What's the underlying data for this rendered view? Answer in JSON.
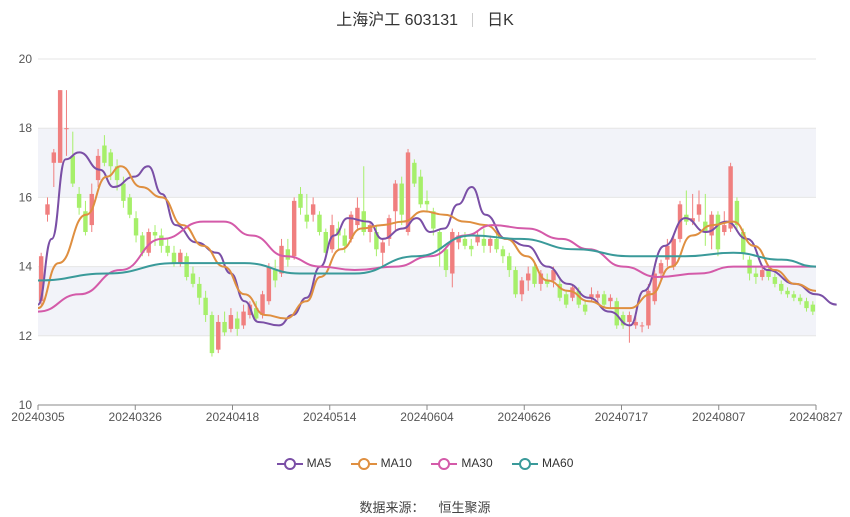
{
  "header": {
    "title": "上海沪工 603131",
    "period": "日K"
  },
  "footer": {
    "source_label": "数据来源：",
    "source_name": "恒生聚源"
  },
  "colors": {
    "up": "#f07f7f",
    "down": "#a6ef6a",
    "ma5": "#7a4fa6",
    "ma10": "#df8f40",
    "ma30": "#d45aa9",
    "ma60": "#3a9a9a",
    "band": "#f2f3f9",
    "grid": "#e6e6e6"
  },
  "chart_data": {
    "type": "candlestick",
    "x_ticks": [
      "20240305",
      "20240326",
      "20240418",
      "20240514",
      "20240604",
      "20240626",
      "20240717",
      "20240807",
      "20240827"
    ],
    "ylim": [
      10,
      20
    ],
    "y_ticks": [
      10,
      12,
      14,
      16,
      18,
      20
    ],
    "grid": true,
    "legend": "bottom",
    "candles": [
      {
        "o": 13.0,
        "c": 14.3,
        "h": 14.4,
        "l": 12.9
      },
      {
        "o": 15.5,
        "c": 15.8,
        "h": 16.0,
        "l": 15.3
      },
      {
        "o": 17.0,
        "c": 17.3,
        "h": 17.4,
        "l": 16.3
      },
      {
        "o": 17.0,
        "c": 19.1,
        "h": 19.1,
        "l": 17.0
      },
      {
        "o": 18.0,
        "c": 18.0,
        "h": 19.1,
        "l": 17.2
      },
      {
        "o": 17.2,
        "c": 16.4,
        "h": 17.9,
        "l": 16.3
      },
      {
        "o": 16.1,
        "c": 15.7,
        "h": 16.3,
        "l": 15.5
      },
      {
        "o": 15.6,
        "c": 15.0,
        "h": 15.9,
        "l": 14.9
      },
      {
        "o": 15.2,
        "c": 16.1,
        "h": 16.4,
        "l": 15.0
      },
      {
        "o": 16.5,
        "c": 17.2,
        "h": 17.4,
        "l": 16.3
      },
      {
        "o": 17.5,
        "c": 17.0,
        "h": 17.8,
        "l": 16.9
      },
      {
        "o": 17.3,
        "c": 16.9,
        "h": 17.4,
        "l": 16.5
      },
      {
        "o": 16.9,
        "c": 16.5,
        "h": 17.1,
        "l": 16.2
      },
      {
        "o": 16.4,
        "c": 15.9,
        "h": 16.6,
        "l": 15.7
      },
      {
        "o": 16.0,
        "c": 15.5,
        "h": 16.1,
        "l": 15.4
      },
      {
        "o": 15.4,
        "c": 14.9,
        "h": 15.6,
        "l": 14.7
      },
      {
        "o": 14.9,
        "c": 14.4,
        "h": 15.0,
        "l": 14.3
      },
      {
        "o": 14.4,
        "c": 15.0,
        "h": 15.1,
        "l": 14.3
      },
      {
        "o": 15.0,
        "c": 14.9,
        "h": 15.2,
        "l": 14.6
      },
      {
        "o": 14.9,
        "c": 14.6,
        "h": 15.1,
        "l": 14.4
      },
      {
        "o": 14.6,
        "c": 14.4,
        "h": 14.8,
        "l": 14.3
      },
      {
        "o": 14.4,
        "c": 14.1,
        "h": 14.6,
        "l": 14.0
      },
      {
        "o": 14.1,
        "c": 14.4,
        "h": 14.5,
        "l": 14.0
      },
      {
        "o": 14.3,
        "c": 13.7,
        "h": 14.4,
        "l": 13.6
      },
      {
        "o": 13.8,
        "c": 13.5,
        "h": 14.0,
        "l": 13.4
      },
      {
        "o": 13.5,
        "c": 13.1,
        "h": 13.7,
        "l": 12.9
      },
      {
        "o": 13.1,
        "c": 12.6,
        "h": 13.3,
        "l": 12.4
      },
      {
        "o": 12.6,
        "c": 11.5,
        "h": 12.7,
        "l": 11.4
      },
      {
        "o": 11.6,
        "c": 12.4,
        "h": 12.6,
        "l": 11.5
      },
      {
        "o": 12.4,
        "c": 12.1,
        "h": 12.7,
        "l": 12.0
      },
      {
        "o": 12.2,
        "c": 12.6,
        "h": 12.8,
        "l": 12.1
      },
      {
        "o": 12.5,
        "c": 12.2,
        "h": 12.7,
        "l": 12.0
      },
      {
        "o": 12.3,
        "c": 12.7,
        "h": 12.9,
        "l": 12.2
      },
      {
        "o": 12.6,
        "c": 12.9,
        "h": 13.0,
        "l": 12.5
      },
      {
        "o": 12.8,
        "c": 12.5,
        "h": 13.0,
        "l": 12.4
      },
      {
        "o": 12.6,
        "c": 13.2,
        "h": 13.3,
        "l": 12.5
      },
      {
        "o": 13.0,
        "c": 14.0,
        "h": 14.1,
        "l": 12.9
      },
      {
        "o": 13.9,
        "c": 13.6,
        "h": 14.2,
        "l": 13.4
      },
      {
        "o": 13.8,
        "c": 14.6,
        "h": 14.8,
        "l": 13.7
      },
      {
        "o": 14.5,
        "c": 14.2,
        "h": 14.8,
        "l": 14.0
      },
      {
        "o": 14.3,
        "c": 15.9,
        "h": 16.0,
        "l": 14.2
      },
      {
        "o": 16.1,
        "c": 15.7,
        "h": 16.3,
        "l": 15.5
      },
      {
        "o": 15.5,
        "c": 15.3,
        "h": 16.1,
        "l": 15.1
      },
      {
        "o": 15.5,
        "c": 15.8,
        "h": 16.0,
        "l": 15.3
      },
      {
        "o": 15.5,
        "c": 15.0,
        "h": 15.6,
        "l": 14.9
      },
      {
        "o": 15.0,
        "c": 14.4,
        "h": 15.1,
        "l": 14.3
      },
      {
        "o": 14.5,
        "c": 15.2,
        "h": 15.5,
        "l": 14.4
      },
      {
        "o": 15.1,
        "c": 14.9,
        "h": 15.3,
        "l": 14.5
      },
      {
        "o": 14.9,
        "c": 14.6,
        "h": 15.1,
        "l": 14.4
      },
      {
        "o": 14.8,
        "c": 15.5,
        "h": 15.6,
        "l": 14.7
      },
      {
        "o": 15.2,
        "c": 15.7,
        "h": 16.0,
        "l": 15.1
      },
      {
        "o": 15.6,
        "c": 15.0,
        "h": 16.9,
        "l": 14.9
      },
      {
        "o": 15.0,
        "c": 15.2,
        "h": 15.3,
        "l": 14.7
      },
      {
        "o": 15.0,
        "c": 14.5,
        "h": 15.2,
        "l": 14.3
      },
      {
        "o": 14.4,
        "c": 14.7,
        "h": 14.8,
        "l": 14.0
      },
      {
        "o": 14.8,
        "c": 15.4,
        "h": 15.5,
        "l": 14.6
      },
      {
        "o": 15.6,
        "c": 16.4,
        "h": 16.5,
        "l": 15.0
      },
      {
        "o": 16.4,
        "c": 15.5,
        "h": 16.6,
        "l": 15.2
      },
      {
        "o": 15.0,
        "c": 17.3,
        "h": 17.4,
        "l": 14.9
      },
      {
        "o": 17.0,
        "c": 16.4,
        "h": 17.1,
        "l": 16.3
      },
      {
        "o": 16.6,
        "c": 15.8,
        "h": 16.8,
        "l": 15.7
      },
      {
        "o": 15.9,
        "c": 15.8,
        "h": 16.2,
        "l": 15.6
      },
      {
        "o": 15.6,
        "c": 15.1,
        "h": 15.7,
        "l": 14.9
      },
      {
        "o": 15.0,
        "c": 14.5,
        "h": 15.1,
        "l": 14.0
      },
      {
        "o": 14.5,
        "c": 13.9,
        "h": 14.6,
        "l": 13.7
      },
      {
        "o": 13.8,
        "c": 15.0,
        "h": 15.1,
        "l": 13.4
      },
      {
        "o": 14.7,
        "c": 14.9,
        "h": 15.0,
        "l": 14.5
      },
      {
        "o": 14.8,
        "c": 14.6,
        "h": 15.0,
        "l": 14.5
      },
      {
        "o": 14.6,
        "c": 14.5,
        "h": 14.8,
        "l": 14.3
      },
      {
        "o": 14.7,
        "c": 14.9,
        "h": 15.0,
        "l": 14.6
      },
      {
        "o": 14.8,
        "c": 14.6,
        "h": 15.1,
        "l": 14.4
      },
      {
        "o": 14.6,
        "c": 14.8,
        "h": 14.9,
        "l": 14.4
      },
      {
        "o": 14.8,
        "c": 14.5,
        "h": 15.0,
        "l": 14.4
      },
      {
        "o": 14.5,
        "c": 14.3,
        "h": 14.6,
        "l": 14.1
      },
      {
        "o": 14.3,
        "c": 13.9,
        "h": 14.4,
        "l": 13.7
      },
      {
        "o": 13.9,
        "c": 13.2,
        "h": 14.0,
        "l": 13.1
      },
      {
        "o": 13.2,
        "c": 13.6,
        "h": 13.7,
        "l": 13.0
      },
      {
        "o": 13.6,
        "c": 13.8,
        "h": 14.0,
        "l": 13.3
      },
      {
        "o": 14.0,
        "c": 13.5,
        "h": 14.1,
        "l": 13.4
      },
      {
        "o": 13.5,
        "c": 13.8,
        "h": 13.9,
        "l": 13.3
      },
      {
        "o": 13.6,
        "c": 13.5,
        "h": 13.8,
        "l": 13.4
      },
      {
        "o": 13.6,
        "c": 13.9,
        "h": 14.0,
        "l": 13.4
      },
      {
        "o": 13.5,
        "c": 13.1,
        "h": 13.7,
        "l": 13.0
      },
      {
        "o": 13.2,
        "c": 12.9,
        "h": 13.3,
        "l": 12.8
      },
      {
        "o": 13.1,
        "c": 13.4,
        "h": 13.5,
        "l": 13.0
      },
      {
        "o": 13.3,
        "c": 12.9,
        "h": 13.4,
        "l": 12.8
      },
      {
        "o": 12.9,
        "c": 12.7,
        "h": 13.0,
        "l": 12.6
      },
      {
        "o": 13.1,
        "c": 13.2,
        "h": 13.4,
        "l": 13.0
      },
      {
        "o": 13.1,
        "c": 13.2,
        "h": 13.3,
        "l": 12.9
      },
      {
        "o": 13.2,
        "c": 12.9,
        "h": 13.3,
        "l": 12.8
      },
      {
        "o": 13.0,
        "c": 13.1,
        "h": 13.2,
        "l": 12.8
      },
      {
        "o": 13.0,
        "c": 12.3,
        "h": 13.1,
        "l": 12.2
      },
      {
        "o": 12.6,
        "c": 12.3,
        "h": 12.7,
        "l": 12.2
      },
      {
        "o": 12.4,
        "c": 12.6,
        "h": 12.7,
        "l": 11.8
      },
      {
        "o": 12.3,
        "c": 12.4,
        "h": 12.6,
        "l": 12.2
      },
      {
        "o": 12.3,
        "c": 12.3,
        "h": 12.4,
        "l": 12.1
      },
      {
        "o": 12.3,
        "c": 13.3,
        "h": 13.5,
        "l": 12.2
      },
      {
        "o": 13.0,
        "c": 13.8,
        "h": 13.9,
        "l": 12.9
      },
      {
        "o": 13.8,
        "c": 14.1,
        "h": 14.2,
        "l": 13.6
      },
      {
        "o": 14.2,
        "c": 14.6,
        "h": 14.8,
        "l": 14.0
      },
      {
        "o": 14.0,
        "c": 14.8,
        "h": 14.9,
        "l": 13.9
      },
      {
        "o": 14.8,
        "c": 15.8,
        "h": 15.9,
        "l": 14.7
      },
      {
        "o": 15.5,
        "c": 15.3,
        "h": 16.2,
        "l": 15.2
      },
      {
        "o": 15.3,
        "c": 15.4,
        "h": 16.1,
        "l": 15.2
      },
      {
        "o": 15.5,
        "c": 15.8,
        "h": 16.2,
        "l": 15.3
      },
      {
        "o": 15.3,
        "c": 15.0,
        "h": 16.1,
        "l": 14.6
      },
      {
        "o": 14.9,
        "c": 15.5,
        "h": 15.6,
        "l": 14.5
      },
      {
        "o": 15.5,
        "c": 14.5,
        "h": 15.6,
        "l": 14.3
      },
      {
        "o": 15.0,
        "c": 15.2,
        "h": 15.6,
        "l": 14.9
      },
      {
        "o": 15.1,
        "c": 16.9,
        "h": 17.0,
        "l": 15.0
      },
      {
        "o": 15.9,
        "c": 15.2,
        "h": 16.0,
        "l": 15.0
      },
      {
        "o": 15.0,
        "c": 14.4,
        "h": 15.1,
        "l": 14.2
      },
      {
        "o": 14.2,
        "c": 13.8,
        "h": 14.3,
        "l": 13.6
      },
      {
        "o": 13.8,
        "c": 13.7,
        "h": 14.0,
        "l": 13.5
      },
      {
        "o": 13.7,
        "c": 13.9,
        "h": 14.0,
        "l": 13.6
      },
      {
        "o": 13.9,
        "c": 13.7,
        "h": 14.0,
        "l": 13.6
      },
      {
        "o": 13.7,
        "c": 13.5,
        "h": 13.8,
        "l": 13.4
      },
      {
        "o": 13.5,
        "c": 13.3,
        "h": 13.6,
        "l": 13.2
      },
      {
        "o": 13.3,
        "c": 13.2,
        "h": 13.4,
        "l": 13.1
      },
      {
        "o": 13.2,
        "c": 13.1,
        "h": 13.3,
        "l": 13.0
      },
      {
        "o": 13.1,
        "c": 13.0,
        "h": 13.2,
        "l": 12.9
      },
      {
        "o": 13.0,
        "c": 12.8,
        "h": 13.1,
        "l": 12.7
      },
      {
        "o": 12.9,
        "c": 12.7,
        "h": 13.0,
        "l": 12.6
      }
    ],
    "series": [
      {
        "name": "MA5",
        "values": [
          [
            0,
            12.9
          ],
          [
            0.02,
            14.8
          ],
          [
            0.04,
            17.1
          ],
          [
            0.06,
            17.3
          ],
          [
            0.09,
            16.8
          ],
          [
            0.11,
            16.3
          ],
          [
            0.14,
            16.6
          ],
          [
            0.16,
            16.9
          ],
          [
            0.18,
            16.1
          ],
          [
            0.2,
            15.2
          ],
          [
            0.23,
            14.7
          ],
          [
            0.26,
            14.4
          ],
          [
            0.28,
            13.8
          ],
          [
            0.3,
            13.0
          ],
          [
            0.32,
            12.4
          ],
          [
            0.35,
            12.3
          ],
          [
            0.37,
            12.6
          ],
          [
            0.39,
            13.1
          ],
          [
            0.41,
            14.0
          ],
          [
            0.43,
            14.9
          ],
          [
            0.45,
            15.4
          ],
          [
            0.48,
            15.3
          ],
          [
            0.5,
            14.8
          ],
          [
            0.53,
            15.1
          ],
          [
            0.55,
            15.4
          ],
          [
            0.57,
            15.0
          ],
          [
            0.59,
            15.1
          ],
          [
            0.61,
            15.8
          ],
          [
            0.63,
            16.3
          ],
          [
            0.65,
            15.5
          ],
          [
            0.68,
            14.8
          ],
          [
            0.71,
            14.6
          ],
          [
            0.74,
            14.0
          ],
          [
            0.77,
            13.5
          ],
          [
            0.8,
            13.1
          ],
          [
            0.83,
            12.7
          ],
          [
            0.86,
            12.3
          ],
          [
            0.88,
            13.3
          ],
          [
            0.91,
            14.6
          ],
          [
            0.94,
            15.4
          ],
          [
            0.97,
            15.0
          ],
          [
            1.0,
            15.3
          ],
          [
            1.03,
            14.8
          ],
          [
            1.06,
            13.9
          ],
          [
            1.1,
            13.5
          ],
          [
            1.13,
            13.2
          ],
          [
            1.16,
            12.9
          ]
        ]
      },
      {
        "name": "MA10",
        "values": [
          [
            0,
            12.8
          ],
          [
            0.03,
            14.1
          ],
          [
            0.07,
            15.5
          ],
          [
            0.1,
            16.6
          ],
          [
            0.12,
            16.9
          ],
          [
            0.15,
            16.3
          ],
          [
            0.18,
            16.0
          ],
          [
            0.21,
            15.2
          ],
          [
            0.24,
            14.6
          ],
          [
            0.27,
            14.0
          ],
          [
            0.3,
            13.2
          ],
          [
            0.33,
            12.6
          ],
          [
            0.36,
            12.5
          ],
          [
            0.39,
            13.0
          ],
          [
            0.41,
            13.7
          ],
          [
            0.44,
            14.5
          ],
          [
            0.47,
            15.1
          ],
          [
            0.5,
            15.2
          ],
          [
            0.53,
            15.3
          ],
          [
            0.56,
            15.6
          ],
          [
            0.59,
            15.5
          ],
          [
            0.62,
            15.3
          ],
          [
            0.65,
            15.2
          ],
          [
            0.68,
            14.8
          ],
          [
            0.71,
            14.3
          ],
          [
            0.74,
            13.6
          ],
          [
            0.77,
            13.3
          ],
          [
            0.8,
            13.0
          ],
          [
            0.83,
            12.8
          ],
          [
            0.86,
            12.8
          ],
          [
            0.89,
            13.2
          ],
          [
            0.92,
            14.0
          ],
          [
            0.95,
            14.9
          ],
          [
            0.98,
            15.2
          ],
          [
            1.01,
            15.3
          ],
          [
            1.04,
            14.6
          ],
          [
            1.07,
            13.9
          ],
          [
            1.1,
            13.5
          ],
          [
            1.13,
            13.3
          ]
        ]
      },
      {
        "name": "MA30",
        "values": [
          [
            0,
            12.7
          ],
          [
            0.06,
            13.2
          ],
          [
            0.12,
            13.9
          ],
          [
            0.18,
            14.8
          ],
          [
            0.24,
            15.3
          ],
          [
            0.27,
            15.3
          ],
          [
            0.31,
            14.9
          ],
          [
            0.36,
            14.3
          ],
          [
            0.41,
            14.0
          ],
          [
            0.46,
            13.9
          ],
          [
            0.52,
            14.0
          ],
          [
            0.57,
            14.3
          ],
          [
            0.62,
            14.9
          ],
          [
            0.66,
            15.2
          ],
          [
            0.71,
            15.1
          ],
          [
            0.76,
            14.8
          ],
          [
            0.8,
            14.5
          ],
          [
            0.85,
            14.0
          ],
          [
            0.9,
            13.7
          ],
          [
            0.96,
            13.8
          ],
          [
            1.01,
            14.0
          ],
          [
            1.06,
            14.0
          ],
          [
            1.13,
            14.0
          ]
        ]
      },
      {
        "name": "MA60",
        "values": [
          [
            0,
            13.6
          ],
          [
            0.1,
            13.8
          ],
          [
            0.2,
            14.1
          ],
          [
            0.3,
            14.1
          ],
          [
            0.38,
            13.8
          ],
          [
            0.46,
            13.8
          ],
          [
            0.55,
            14.3
          ],
          [
            0.63,
            14.9
          ],
          [
            0.7,
            14.8
          ],
          [
            0.78,
            14.5
          ],
          [
            0.86,
            14.3
          ],
          [
            0.94,
            14.3
          ],
          [
            1.01,
            14.4
          ],
          [
            1.08,
            14.2
          ],
          [
            1.13,
            14.0
          ]
        ]
      }
    ]
  }
}
